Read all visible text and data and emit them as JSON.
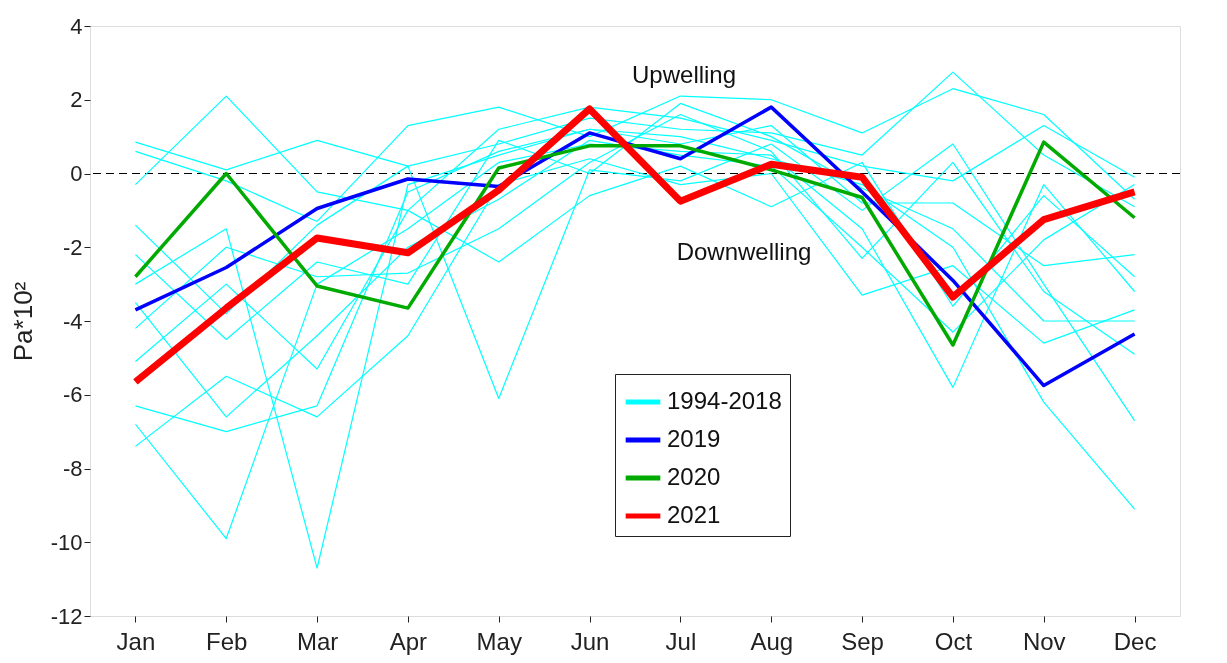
{
  "chart_data": {
    "type": "line",
    "ylabel": "Pa*10²",
    "categories": [
      "Jan",
      "Feb",
      "Mar",
      "Apr",
      "May",
      "Jun",
      "Jul",
      "Aug",
      "Sep",
      "Oct",
      "Nov",
      "Dec"
    ],
    "ylim": [
      -12,
      4
    ],
    "yticks": [
      -12,
      -10,
      -8,
      -6,
      -4,
      -2,
      0,
      2,
      4
    ],
    "grid": false,
    "legend": "bottom",
    "marker": "none",
    "line_style": "solid",
    "ref_lines": [
      {
        "axis": "y",
        "value": 0,
        "color": "#000000",
        "line_style": "dashed"
      }
    ],
    "annotations": [
      "Upwelling",
      "Downwelling"
    ],
    "series": [
      {
        "name": "1994-2018",
        "color": "#00ffff",
        "values": [
          0.85,
          0.1,
          0.9,
          0.2,
          0.8,
          1.5,
          1.2,
          1.1,
          0.5,
          2.75,
          0.5,
          -0.9
        ]
      },
      {
        "color": "#00ffff",
        "values": [
          0.6,
          -0.2,
          -1.3,
          1.3,
          1.8,
          1.0,
          2.1,
          2.0,
          1.1,
          2.3,
          1.6,
          -0.7
        ]
      },
      {
        "color": "#00ffff",
        "values": [
          -0.3,
          2.1,
          -0.5,
          -1.0,
          1.2,
          1.8,
          1.5,
          0.9,
          0.2,
          -0.2,
          1.3,
          -0.1
        ]
      },
      {
        "color": "#00ffff",
        "values": [
          -6.8,
          -9.9,
          -3.0,
          -1.5,
          0.3,
          0.8,
          0.6,
          0.5,
          -1.5,
          -5.8,
          -0.3,
          -3.2
        ]
      },
      {
        "color": "#00ffff",
        "values": [
          -3.0,
          -1.5,
          -10.7,
          -0.3,
          0.5,
          1.2,
          1.0,
          0.4,
          -0.3,
          -2.0,
          -6.2,
          -9.1
        ]
      },
      {
        "color": "#00ffff",
        "values": [
          -1.4,
          -3.8,
          -1.4,
          0.2,
          -6.1,
          0.1,
          -0.2,
          0.8,
          -1.0,
          0.8,
          -3.0,
          -6.7
        ]
      },
      {
        "color": "#00ffff",
        "values": [
          -7.4,
          -5.5,
          -6.6,
          -4.4,
          -0.3,
          0.4,
          -0.3,
          0.0,
          -3.3,
          -2.5,
          -4.6,
          -3.7
        ]
      },
      {
        "color": "#00ffff",
        "values": [
          -6.3,
          -7.0,
          -6.3,
          -0.5,
          0.6,
          1.2,
          0.8,
          1.3,
          -0.8,
          -0.8,
          -2.5,
          -2.2
        ]
      },
      {
        "color": "#00ffff",
        "values": [
          -4.2,
          -2.0,
          -2.8,
          -2.7,
          -1.5,
          0.3,
          1.6,
          0.6,
          -2.3,
          0.3,
          -3.2,
          -4.9
        ]
      },
      {
        "color": "#00ffff",
        "values": [
          -5.1,
          -3.0,
          -5.3,
          -1.0,
          -2.4,
          -0.6,
          0.2,
          -0.9,
          0.3,
          -3.6,
          -0.6,
          -2.8
        ]
      },
      {
        "color": "#00ffff",
        "values": [
          -3.5,
          -6.6,
          -4.4,
          -2.0,
          -0.7,
          0.9,
          0.5,
          0.2,
          -2.0,
          -4.3,
          -1.8,
          -0.3
        ]
      },
      {
        "color": "#00ffff",
        "values": [
          -2.2,
          -4.5,
          -2.4,
          -3.0,
          0.9,
          0.0,
          1.9,
          1.0,
          -0.4,
          -1.5,
          -4.0,
          -4.0
        ]
      },
      {
        "name": "2019",
        "color": "#0000ff",
        "values": [
          -3.7,
          -2.55,
          -0.95,
          -0.15,
          -0.35,
          1.1,
          0.4,
          1.8,
          -0.5,
          -2.9,
          -5.75,
          -4.35
        ]
      },
      {
        "name": "2020",
        "color": "#00aa00",
        "values": [
          -2.8,
          0.0,
          -3.05,
          -3.65,
          0.15,
          0.75,
          0.75,
          0.1,
          -0.65,
          -4.65,
          0.85,
          -1.2
        ]
      },
      {
        "name": "2021",
        "color": "#ff0000",
        "values": [
          -5.65,
          -3.65,
          -1.75,
          -2.15,
          -0.45,
          1.75,
          -0.75,
          0.25,
          -0.1,
          -3.35,
          -1.25,
          -0.5
        ]
      }
    ]
  }
}
